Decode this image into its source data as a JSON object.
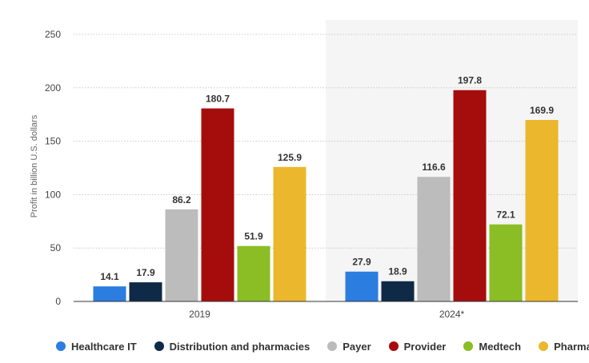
{
  "chart_data": {
    "type": "bar",
    "categories": [
      "2019",
      "2024*"
    ],
    "series": [
      {
        "name": "Healthcare IT",
        "color": "#2b7de0",
        "values": [
          14.1,
          27.9
        ]
      },
      {
        "name": "Distribution and pharmacies",
        "color": "#0e2a47",
        "values": [
          17.9,
          18.9
        ]
      },
      {
        "name": "Payer",
        "color": "#bcbcbc",
        "values": [
          86.2,
          116.6
        ]
      },
      {
        "name": "Provider",
        "color": "#a50d0d",
        "values": [
          180.7,
          197.8
        ]
      },
      {
        "name": "Medtech",
        "color": "#8bbd24",
        "values": [
          51.9,
          72.1
        ]
      },
      {
        "name": "Pharma",
        "color": "#ebb72c",
        "values": [
          125.9,
          169.9
        ]
      }
    ],
    "data_labels": [
      [
        "14.1",
        "27.9"
      ],
      [
        "17.9",
        "18.9"
      ],
      [
        "86.2",
        "116.6"
      ],
      [
        "180.7",
        "197.8"
      ],
      [
        "51.9",
        "72.1"
      ],
      [
        "125.9",
        "169.9"
      ]
    ],
    "ylabel": "Profit in billion U.S. dollars",
    "ylim": [
      0,
      250
    ],
    "yticks": [
      "0",
      "50",
      "100",
      "150",
      "200",
      "250"
    ],
    "grid": true,
    "highlighted_category": "2024*",
    "legend_position": "bottom"
  }
}
